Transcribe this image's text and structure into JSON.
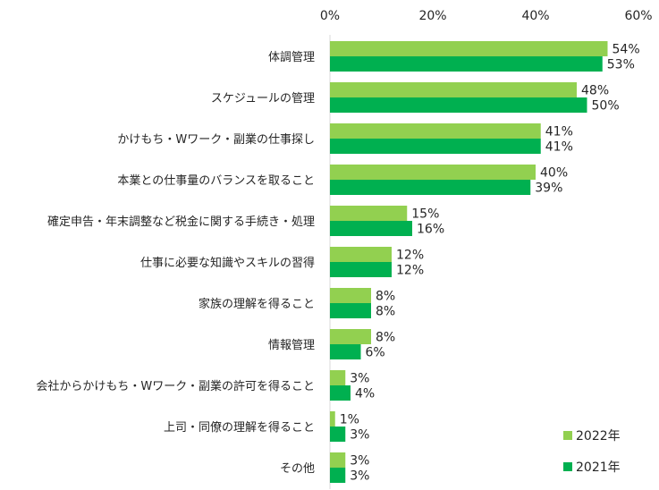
{
  "chart_data": {
    "type": "bar",
    "orientation": "horizontal",
    "xlim": [
      0,
      60
    ],
    "x_ticks": [
      "0%",
      "20%",
      "40%",
      "60%"
    ],
    "x_tick_values": [
      0,
      20,
      40,
      60
    ],
    "tick_position": "top",
    "grid": false,
    "legend_position": "bottom-right",
    "categories": [
      "体調管理",
      "スケジュールの管理",
      "かけもち・Wワーク・副業の仕事探し",
      "本業との仕事量のバランスを取ること",
      "確定申告・年末調整など税金に関する手続き・処理",
      "仕事に必要な知識やスキルの習得",
      "家族の理解を得ること",
      "情報管理",
      "会社からかけもち・Wワーク・副業の許可を得ること",
      "上司・同僚の理解を得ること",
      "その他"
    ],
    "series": [
      {
        "name": "2022年",
        "color": "#92d050",
        "values": [
          54,
          48,
          41,
          40,
          15,
          12,
          8,
          8,
          3,
          1,
          3
        ],
        "labels": [
          "54%",
          "48%",
          "41%",
          "40%",
          "15%",
          "12%",
          "8%",
          "8%",
          "3%",
          "1%",
          "3%"
        ]
      },
      {
        "name": "2021年",
        "color": "#00b050",
        "values": [
          53,
          50,
          41,
          39,
          16,
          12,
          8,
          6,
          4,
          3,
          3
        ],
        "labels": [
          "53%",
          "50%",
          "41%",
          "39%",
          "16%",
          "12%",
          "8%",
          "6%",
          "4%",
          "3%",
          "3%"
        ]
      }
    ]
  }
}
